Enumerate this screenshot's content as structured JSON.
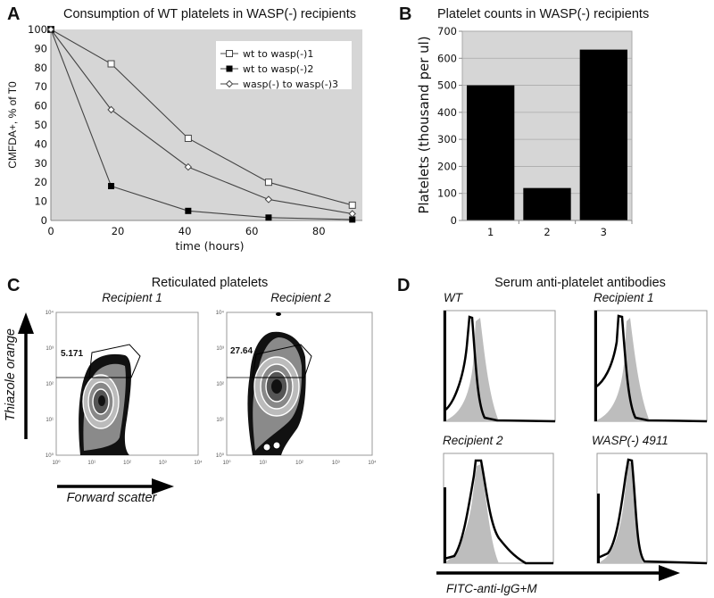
{
  "chart_data": [
    {
      "panel": "A",
      "type": "line",
      "title": "Consumption of WT platelets in WASP(-) recipients",
      "xlabel": "time (hours)",
      "ylabel": "CMFDA+, % of T0",
      "xlim": [
        0,
        93
      ],
      "ylim": [
        0,
        100
      ],
      "xticks": [
        "0",
        "20",
        "40",
        "60",
        "80"
      ],
      "xtick_values": [
        0,
        20,
        40,
        60,
        80
      ],
      "yticks": [
        "0",
        "10",
        "20",
        "30",
        "40",
        "50",
        "60",
        "70",
        "80",
        "90",
        "100"
      ],
      "legend_position": "top-right",
      "series": [
        {
          "name": "wt to wasp(-)1",
          "marker": "open-square",
          "x": [
            0,
            18,
            41,
            65,
            90
          ],
          "y": [
            100,
            82,
            43,
            20,
            8
          ]
        },
        {
          "name": "wt to wasp(-)2",
          "marker": "filled-square",
          "x": [
            0,
            18,
            41,
            65,
            90
          ],
          "y": [
            100,
            18,
            5,
            1.5,
            0.5
          ]
        },
        {
          "name": "wasp(-) to wasp(-)3",
          "marker": "open-diamond",
          "x": [
            0,
            18,
            41,
            65,
            90
          ],
          "y": [
            100,
            58,
            28,
            11,
            3.5
          ]
        }
      ],
      "background": "#d6d6d6"
    },
    {
      "panel": "B",
      "type": "bar",
      "title": "Platelet counts  in WASP(-) recipients",
      "xlabel": "",
      "ylabel": "Platelets (thousand per ul)",
      "categories": [
        "1",
        "2",
        "3"
      ],
      "values": [
        500,
        120,
        632
      ],
      "ylim": [
        0,
        700
      ],
      "yticks": [
        "0",
        "100",
        "200",
        "300",
        "400",
        "500",
        "600",
        "700"
      ],
      "grid": true,
      "bar_color": "#000000",
      "background": "#d6d6d6"
    },
    {
      "panel": "C",
      "type": "scatter",
      "title": "Reticulated platelets",
      "xlabel": "Forward scatter",
      "ylabel": "Thiazole orange",
      "axis_ticks": [
        "10⁰",
        "10¹",
        "10²",
        "10³",
        "10⁴"
      ],
      "plots": [
        {
          "name": "Recipient 1",
          "gate_percent": "5.171"
        },
        {
          "name": "Recipient 2",
          "gate_percent": "27.64"
        }
      ]
    },
    {
      "panel": "D",
      "type": "area",
      "title": "Serum anti-platelet antibodies",
      "xlabel": "FITC-anti-IgG+M",
      "plots": [
        {
          "name": "WT"
        },
        {
          "name": "Recipient 1"
        },
        {
          "name": "Recipient 2"
        },
        {
          "name": "WASP(-) 4911"
        }
      ],
      "control_fill": "#bdbdbd",
      "sample_line": "#000000"
    }
  ]
}
